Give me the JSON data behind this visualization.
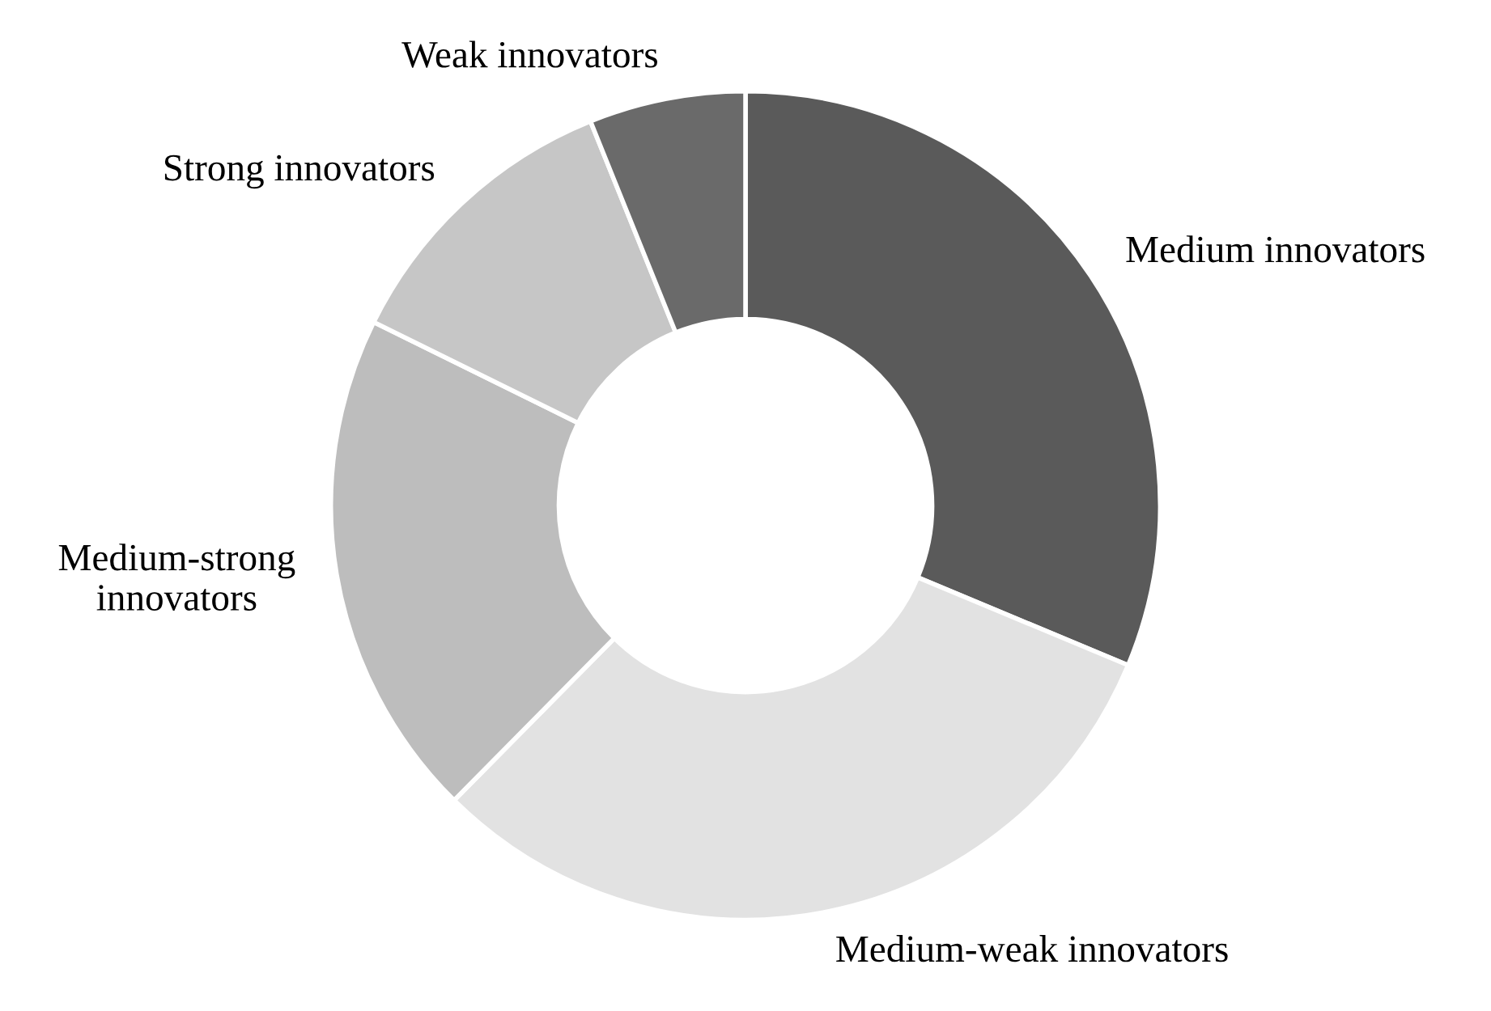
{
  "chart_data": {
    "type": "donut",
    "categories": [
      "Medium innovators",
      "Medium-weak innovators",
      "Medium-strong\ninnovators",
      "Strong innovators",
      "Weak innovators"
    ],
    "values": [
      31.3,
      31.1,
      19.9,
      11.6,
      6.1
    ],
    "colors": [
      "#5a5a5a",
      "#e2e2e2",
      "#bdbdbd",
      "#c6c6c6",
      "#6a6a6a"
    ],
    "legend": false
  }
}
